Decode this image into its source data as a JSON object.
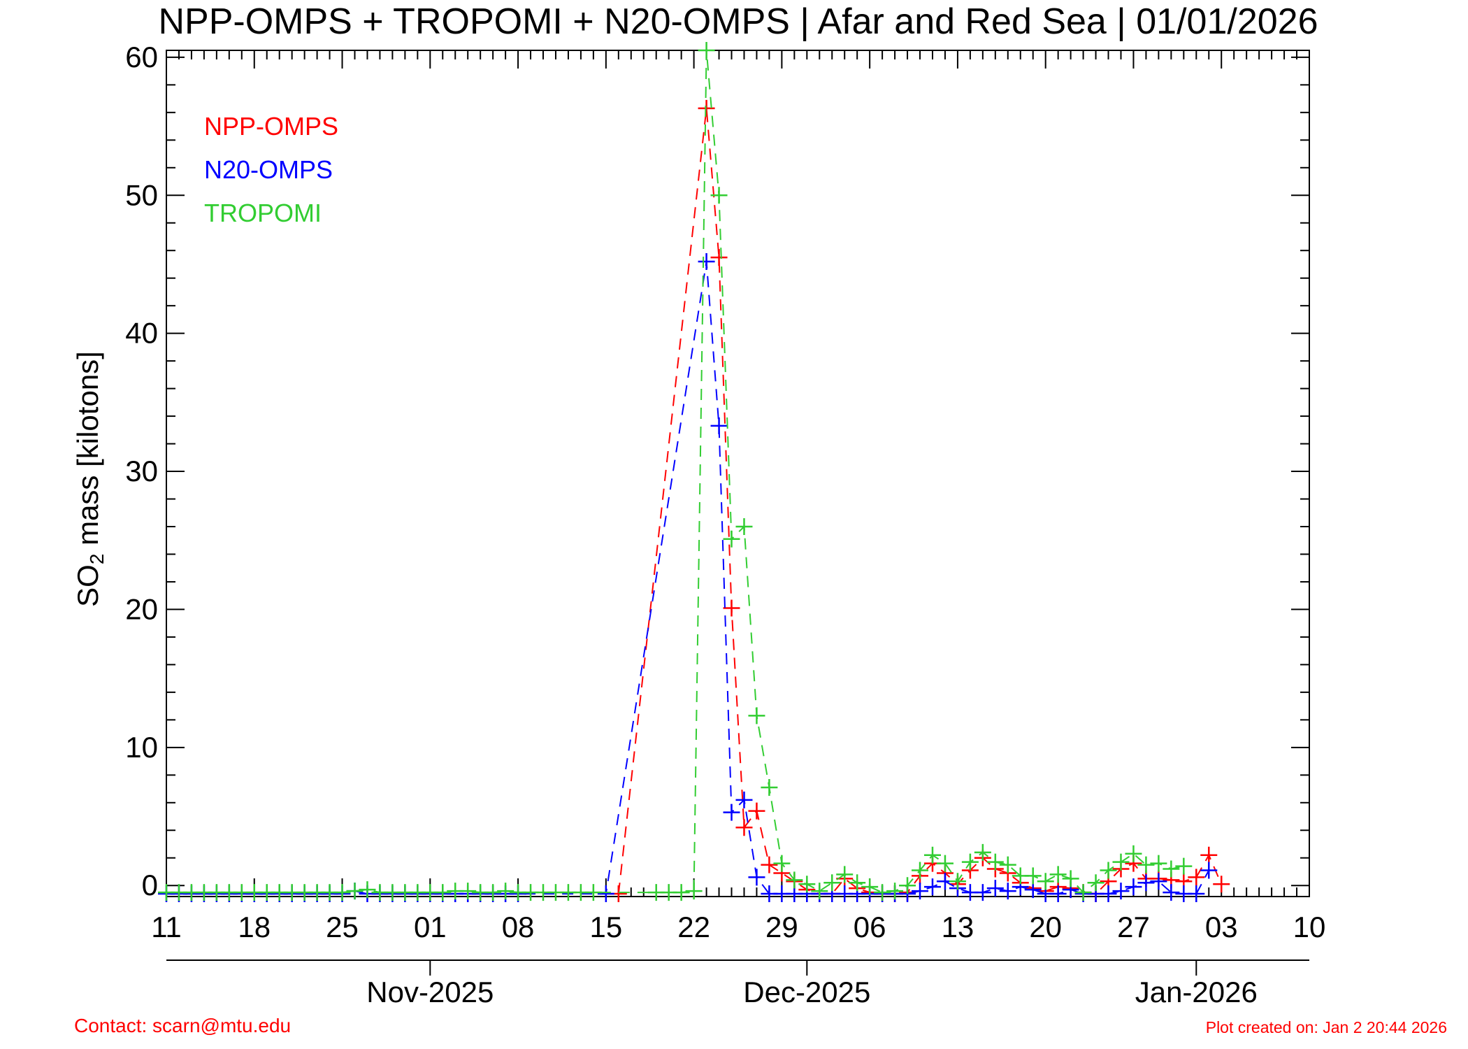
{
  "chart_data": {
    "type": "line",
    "title": "NPP-OMPS + TROPOMI + N20-OMPS | Afar and Red Sea | 01/01/2026",
    "ylabel_prefix": "SO",
    "ylabel_subscript": "2",
    "ylabel_suffix": " mass [kilotons]",
    "xlim": [
      "2025-10-11",
      "2026-01-10"
    ],
    "ylim": [
      -0.8,
      60.5
    ],
    "y_ticks": [
      0,
      10,
      20,
      30,
      40,
      50,
      60
    ],
    "y_tick_labels": [
      "0",
      "10",
      "20",
      "30",
      "40",
      "50",
      "60"
    ],
    "x_ticks": [
      {
        "date": "2025-10-11",
        "label": "11"
      },
      {
        "date": "2025-10-18",
        "label": "18"
      },
      {
        "date": "2025-10-25",
        "label": "25"
      },
      {
        "date": "2025-11-01",
        "label": "01"
      },
      {
        "date": "2025-11-08",
        "label": "08"
      },
      {
        "date": "2025-11-15",
        "label": "15"
      },
      {
        "date": "2025-11-22",
        "label": "22"
      },
      {
        "date": "2025-11-29",
        "label": "29"
      },
      {
        "date": "2025-12-06",
        "label": "06"
      },
      {
        "date": "2025-12-13",
        "label": "13"
      },
      {
        "date": "2025-12-20",
        "label": "20"
      },
      {
        "date": "2025-12-27",
        "label": "27"
      },
      {
        "date": "2026-01-03",
        "label": "03"
      },
      {
        "date": "2026-01-10",
        "label": "10"
      }
    ],
    "month_axis": [
      {
        "date": "2025-11-01",
        "label": "Nov-2025"
      },
      {
        "date": "2025-12-01",
        "label": "Dec-2025"
      },
      {
        "date": "2026-01-01",
        "label": "Jan-2026"
      }
    ],
    "legend_position": "top-left",
    "series": [
      {
        "name": "NPP-OMPS",
        "color": "#ff0000",
        "points": [
          [
            "2025-11-16",
            -0.6
          ],
          [
            "2025-11-23",
            56.3
          ],
          [
            "2025-11-24",
            45.5
          ],
          [
            "2025-11-25",
            20.1
          ],
          [
            "2025-11-26",
            4.2
          ],
          [
            "2025-11-27",
            5.4
          ],
          [
            "2025-11-28",
            1.5
          ],
          [
            "2025-11-29",
            0.9
          ],
          [
            "2025-11-30",
            0.3
          ],
          [
            "2025-12-01",
            -0.3
          ],
          [
            "2025-12-02",
            -0.6
          ],
          [
            "2025-12-03",
            -0.6
          ],
          [
            "2025-12-04",
            0.5
          ],
          [
            "2025-12-05",
            -0.2
          ],
          [
            "2025-12-06",
            -0.5
          ],
          [
            "2025-12-07",
            -0.6
          ],
          [
            "2025-12-08",
            -0.6
          ],
          [
            "2025-12-09",
            -0.5
          ],
          [
            "2025-12-10",
            0.7
          ],
          [
            "2025-12-11",
            1.6
          ],
          [
            "2025-12-12",
            0.9
          ],
          [
            "2025-12-13",
            0.1
          ],
          [
            "2025-12-14",
            1.1
          ],
          [
            "2025-12-15",
            2.0
          ],
          [
            "2025-12-16",
            1.2
          ],
          [
            "2025-12-17",
            0.9
          ],
          [
            "2025-12-18",
            0.2
          ],
          [
            "2025-12-19",
            -0.2
          ],
          [
            "2025-12-20",
            -0.4
          ],
          [
            "2025-12-21",
            -0.1
          ],
          [
            "2025-12-22",
            -0.2
          ],
          [
            "2025-12-23",
            -0.5
          ],
          [
            "2025-12-24",
            -0.6
          ],
          [
            "2025-12-25",
            0.3
          ],
          [
            "2025-12-26",
            1.2
          ],
          [
            "2025-12-27",
            1.6
          ],
          [
            "2025-12-28",
            0.5
          ],
          [
            "2025-12-29",
            0.5
          ],
          [
            "2025-12-30",
            0.4
          ],
          [
            "2025-12-31",
            0.3
          ],
          [
            "2026-01-01",
            0.6
          ],
          [
            "2026-01-02",
            2.2
          ],
          [
            "2026-01-03",
            0.1
          ]
        ]
      },
      {
        "name": "N20-OMPS",
        "color": "#0000ff",
        "points": [
          [
            "2025-10-11",
            -0.6
          ],
          [
            "2025-10-12",
            -0.6
          ],
          [
            "2025-10-13",
            -0.6
          ],
          [
            "2025-10-14",
            -0.6
          ],
          [
            "2025-10-15",
            -0.6
          ],
          [
            "2025-10-16",
            -0.6
          ],
          [
            "2025-10-17",
            -0.6
          ],
          [
            "2025-10-18",
            -0.6
          ],
          [
            "2025-10-19",
            -0.6
          ],
          [
            "2025-10-20",
            -0.6
          ],
          [
            "2025-10-21",
            -0.6
          ],
          [
            "2025-10-22",
            -0.6
          ],
          [
            "2025-10-23",
            -0.6
          ],
          [
            "2025-10-24",
            -0.6
          ],
          [
            "2025-10-25",
            -0.6
          ],
          [
            "2025-10-26",
            -0.4
          ],
          [
            "2025-10-27",
            -0.6
          ],
          [
            "2025-10-28",
            -0.6
          ],
          [
            "2025-10-29",
            -0.6
          ],
          [
            "2025-10-30",
            -0.6
          ],
          [
            "2025-10-31",
            -0.6
          ],
          [
            "2025-11-01",
            -0.6
          ],
          [
            "2025-11-02",
            -0.6
          ],
          [
            "2025-11-03",
            -0.6
          ],
          [
            "2025-11-04",
            -0.6
          ],
          [
            "2025-11-05",
            -0.6
          ],
          [
            "2025-11-06",
            -0.6
          ],
          [
            "2025-11-07",
            -0.6
          ],
          [
            "2025-11-08",
            -0.6
          ],
          [
            "2025-11-15",
            -0.6
          ],
          [
            "2025-11-23",
            45.2
          ],
          [
            "2025-11-24",
            33.3
          ],
          [
            "2025-11-25",
            5.3
          ],
          [
            "2025-11-26",
            6.2
          ],
          [
            "2025-11-27",
            0.6
          ],
          [
            "2025-11-28",
            -0.6
          ],
          [
            "2025-11-29",
            -0.6
          ],
          [
            "2025-11-30",
            -0.6
          ],
          [
            "2025-12-01",
            -0.6
          ],
          [
            "2025-12-02",
            -0.6
          ],
          [
            "2025-12-03",
            -0.6
          ],
          [
            "2025-12-04",
            -0.6
          ],
          [
            "2025-12-05",
            -0.6
          ],
          [
            "2025-12-06",
            -0.6
          ],
          [
            "2025-12-07",
            -0.6
          ],
          [
            "2025-12-08",
            -0.6
          ],
          [
            "2025-12-09",
            -0.6
          ],
          [
            "2025-12-10",
            -0.4
          ],
          [
            "2025-12-11",
            -0.1
          ],
          [
            "2025-12-12",
            0.3
          ],
          [
            "2025-12-13",
            -0.2
          ],
          [
            "2025-12-14",
            -0.5
          ],
          [
            "2025-12-15",
            -0.5
          ],
          [
            "2025-12-16",
            -0.2
          ],
          [
            "2025-12-17",
            -0.4
          ],
          [
            "2025-12-18",
            -0.1
          ],
          [
            "2025-12-19",
            -0.3
          ],
          [
            "2025-12-20",
            -0.6
          ],
          [
            "2025-12-21",
            -0.6
          ],
          [
            "2025-12-22",
            -0.3
          ],
          [
            "2025-12-23",
            -0.6
          ],
          [
            "2025-12-24",
            -0.6
          ],
          [
            "2025-12-25",
            -0.6
          ],
          [
            "2025-12-26",
            -0.4
          ],
          [
            "2025-12-27",
            -0.1
          ],
          [
            "2025-12-28",
            0.2
          ],
          [
            "2025-12-29",
            0.3
          ],
          [
            "2025-12-30",
            -0.5
          ],
          [
            "2025-12-31",
            -0.6
          ],
          [
            "2026-01-01",
            -0.6
          ],
          [
            "2026-01-02",
            1.1
          ]
        ]
      },
      {
        "name": "TROPOMI",
        "color": "#32cd32",
        "points": [
          [
            "2025-10-11",
            -0.5
          ],
          [
            "2025-10-12",
            -0.5
          ],
          [
            "2025-10-13",
            -0.5
          ],
          [
            "2025-10-14",
            -0.5
          ],
          [
            "2025-10-15",
            -0.5
          ],
          [
            "2025-10-16",
            -0.5
          ],
          [
            "2025-10-17",
            -0.5
          ],
          [
            "2025-10-18",
            -0.5
          ],
          [
            "2025-10-19",
            -0.5
          ],
          [
            "2025-10-20",
            -0.5
          ],
          [
            "2025-10-21",
            -0.5
          ],
          [
            "2025-10-22",
            -0.5
          ],
          [
            "2025-10-23",
            -0.5
          ],
          [
            "2025-10-24",
            -0.5
          ],
          [
            "2025-10-25",
            -0.5
          ],
          [
            "2025-10-26",
            -0.4
          ],
          [
            "2025-10-27",
            -0.3
          ],
          [
            "2025-10-28",
            -0.5
          ],
          [
            "2025-10-29",
            -0.5
          ],
          [
            "2025-10-30",
            -0.5
          ],
          [
            "2025-10-31",
            -0.5
          ],
          [
            "2025-11-01",
            -0.5
          ],
          [
            "2025-11-02",
            -0.5
          ],
          [
            "2025-11-03",
            -0.4
          ],
          [
            "2025-11-04",
            -0.4
          ],
          [
            "2025-11-05",
            -0.5
          ],
          [
            "2025-11-06",
            -0.5
          ],
          [
            "2025-11-07",
            -0.4
          ],
          [
            "2025-11-08",
            -0.5
          ],
          [
            "2025-11-09",
            -0.5
          ],
          [
            "2025-11-10",
            -0.5
          ],
          [
            "2025-11-11",
            -0.5
          ],
          [
            "2025-11-12",
            -0.5
          ],
          [
            "2025-11-13",
            -0.5
          ],
          [
            "2025-11-14",
            -0.5
          ],
          [
            "2025-11-19",
            -0.5
          ],
          [
            "2025-11-20",
            -0.5
          ],
          [
            "2025-11-21",
            -0.5
          ],
          [
            "2025-11-22",
            -0.4
          ],
          [
            "2025-11-23",
            60.5
          ],
          [
            "2025-11-24",
            50.0
          ],
          [
            "2025-11-25",
            25.1
          ],
          [
            "2025-11-26",
            26.0
          ],
          [
            "2025-11-27",
            12.3
          ],
          [
            "2025-11-28",
            7.1
          ],
          [
            "2025-11-29",
            1.6
          ],
          [
            "2025-11-30",
            0.4
          ],
          [
            "2025-12-01",
            0.1
          ],
          [
            "2025-12-02",
            -0.4
          ],
          [
            "2025-12-03",
            0.2
          ],
          [
            "2025-12-04",
            0.8
          ],
          [
            "2025-12-05",
            0.2
          ],
          [
            "2025-12-06",
            -0.1
          ],
          [
            "2025-12-07",
            -0.5
          ],
          [
            "2025-12-08",
            -0.4
          ],
          [
            "2025-12-09",
            0.0
          ],
          [
            "2025-12-10",
            1.1
          ],
          [
            "2025-12-11",
            2.2
          ],
          [
            "2025-12-12",
            1.6
          ],
          [
            "2025-12-13",
            0.3
          ],
          [
            "2025-12-14",
            1.7
          ],
          [
            "2025-12-15",
            2.4
          ],
          [
            "2025-12-16",
            1.7
          ],
          [
            "2025-12-17",
            1.5
          ],
          [
            "2025-12-18",
            0.7
          ],
          [
            "2025-12-19",
            0.7
          ],
          [
            "2025-12-20",
            0.3
          ],
          [
            "2025-12-21",
            0.8
          ],
          [
            "2025-12-22",
            0.5
          ],
          [
            "2025-12-23",
            -0.5
          ],
          [
            "2025-12-24",
            0.2
          ],
          [
            "2025-12-25",
            1.1
          ],
          [
            "2025-12-26",
            1.7
          ],
          [
            "2025-12-27",
            2.3
          ],
          [
            "2025-12-28",
            1.5
          ],
          [
            "2025-12-29",
            1.6
          ],
          [
            "2025-12-30",
            1.2
          ],
          [
            "2025-12-31",
            1.4
          ]
        ]
      }
    ]
  },
  "footer": {
    "contact": "Contact: scarn@mtu.edu",
    "created": "Plot created on: Jan  2 20:44 2026"
  }
}
